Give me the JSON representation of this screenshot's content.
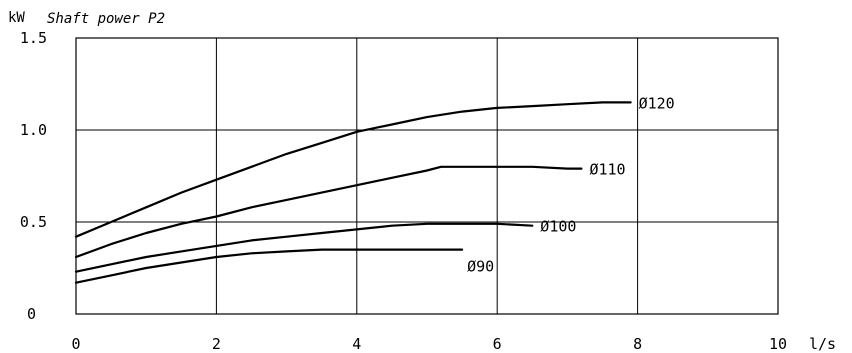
{
  "chart_data": {
    "type": "line",
    "title": "Shaft power P2",
    "ylabel": "kW",
    "xlabel": "l/s",
    "xlim": [
      0,
      10
    ],
    "ylim": [
      0,
      1.5
    ],
    "x_ticks": [
      0,
      2,
      4,
      6,
      8,
      10
    ],
    "x_tick_labels": [
      "0",
      "2",
      "4",
      "6",
      "8",
      "10"
    ],
    "y_ticks": [
      0,
      0.5,
      1.0,
      1.5
    ],
    "y_tick_labels": [
      "0",
      "0.5",
      "1.0",
      "1.5"
    ],
    "grid": true,
    "series": [
      {
        "name": "Ø120",
        "x": [
          0,
          0.5,
          1,
          1.5,
          2,
          2.5,
          3,
          3.5,
          4,
          4.5,
          5,
          5.5,
          6,
          6.5,
          7,
          7.5,
          7.9
        ],
        "y": [
          0.42,
          0.5,
          0.58,
          0.66,
          0.73,
          0.8,
          0.87,
          0.93,
          0.99,
          1.03,
          1.07,
          1.1,
          1.12,
          1.13,
          1.14,
          1.15,
          1.15
        ]
      },
      {
        "name": "Ø110",
        "x": [
          0,
          0.5,
          1,
          1.5,
          2,
          2.5,
          3,
          3.5,
          4,
          4.5,
          5,
          5.2,
          5.5,
          6,
          6.5,
          7,
          7.2
        ],
        "y": [
          0.31,
          0.38,
          0.44,
          0.49,
          0.53,
          0.58,
          0.62,
          0.66,
          0.7,
          0.74,
          0.78,
          0.8,
          0.8,
          0.8,
          0.8,
          0.79,
          0.79
        ]
      },
      {
        "name": "Ø100",
        "x": [
          0,
          0.5,
          1,
          1.5,
          2,
          2.5,
          3,
          3.5,
          4,
          4.5,
          5,
          5.5,
          6,
          6.5
        ],
        "y": [
          0.23,
          0.27,
          0.31,
          0.34,
          0.37,
          0.4,
          0.42,
          0.44,
          0.46,
          0.48,
          0.49,
          0.49,
          0.49,
          0.48
        ]
      },
      {
        "name": "Ø90",
        "x": [
          0,
          0.5,
          1,
          1.5,
          2,
          2.5,
          3,
          3.5,
          4,
          4.5,
          5,
          5.5
        ],
        "y": [
          0.17,
          0.21,
          0.25,
          0.28,
          0.31,
          0.33,
          0.34,
          0.35,
          0.35,
          0.35,
          0.35,
          0.35
        ]
      }
    ]
  }
}
